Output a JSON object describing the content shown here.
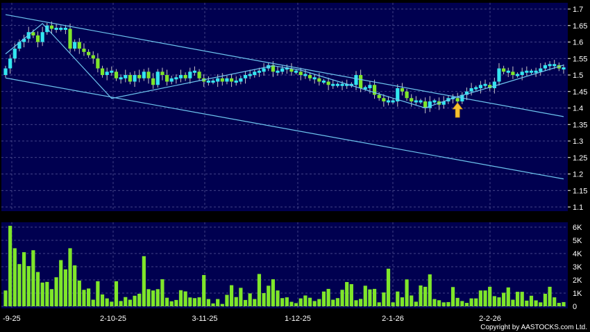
{
  "chart_data": [
    {
      "type": "candlestick",
      "panel": "price",
      "ylim": [
        1.1,
        1.7
      ],
      "yticks": [
        "1.7",
        "1.65",
        "1.6",
        "1.55",
        "1.5",
        "1.45",
        "1.4",
        "1.35",
        "1.3",
        "1.25",
        "1.2",
        "1.15",
        "1.1"
      ],
      "grid": true,
      "colors": {
        "background": "#000050",
        "up": "#33e6f0",
        "down": "#7fe62a",
        "trendline": "#6ec6f0",
        "arrow": "#f5c030"
      },
      "closes": [
        1.52,
        1.55,
        1.58,
        1.6,
        1.61,
        1.63,
        1.62,
        1.6,
        1.63,
        1.65,
        1.64,
        1.64,
        1.64,
        1.64,
        1.58,
        1.6,
        1.58,
        1.57,
        1.56,
        1.55,
        1.52,
        1.5,
        1.51,
        1.51,
        1.49,
        1.49,
        1.5,
        1.48,
        1.5,
        1.49,
        1.51,
        1.49,
        1.47,
        1.51,
        1.5,
        1.48,
        1.49,
        1.49,
        1.5,
        1.49,
        1.51,
        1.51,
        1.49,
        1.48,
        1.48,
        1.48,
        1.49,
        1.48,
        1.49,
        1.48,
        1.48,
        1.49,
        1.5,
        1.5,
        1.51,
        1.51,
        1.52,
        1.53,
        1.51,
        1.51,
        1.52,
        1.52,
        1.51,
        1.51,
        1.5,
        1.5,
        1.49,
        1.49,
        1.48,
        1.48,
        1.47,
        1.47,
        1.47,
        1.47,
        1.47,
        1.47,
        1.5,
        1.46,
        1.46,
        1.47,
        1.44,
        1.43,
        1.42,
        1.42,
        1.42,
        1.46,
        1.45,
        1.43,
        1.42,
        1.42,
        1.42,
        1.4,
        1.42,
        1.42,
        1.41,
        1.42,
        1.43,
        1.43,
        1.42,
        1.44,
        1.45,
        1.46,
        1.46,
        1.47,
        1.47,
        1.46,
        1.48,
        1.52,
        1.51,
        1.51,
        1.5,
        1.5,
        1.51,
        1.51,
        1.51,
        1.51,
        1.52,
        1.53,
        1.53,
        1.53,
        1.52,
        1.52
      ],
      "trendlines": [
        {
          "from": [
            0,
            1.683
          ],
          "to": [
            121,
            1.374
          ]
        },
        {
          "from": [
            0,
            1.491
          ],
          "to": [
            121,
            1.185
          ]
        },
        {
          "points": [
            [
              0,
              1.564
            ],
            [
              8,
              1.656
            ],
            [
              23,
              1.429
            ],
            [
              58,
              1.528
            ],
            [
              64,
              1.515
            ],
            [
              91,
              1.4
            ],
            [
              97,
              1.43
            ],
            [
              108,
              1.475
            ],
            [
              121,
              1.53
            ]
          ]
        }
      ],
      "annotation": {
        "type": "up-arrow",
        "bar": 98
      }
    },
    {
      "type": "bar",
      "panel": "volume",
      "ylim": [
        0,
        6000
      ],
      "yticks": [
        "6K",
        "5K",
        "4K",
        "3K",
        "2K",
        "1K",
        "0"
      ],
      "values": [
        1200,
        6100,
        4400,
        3200,
        4100,
        3050,
        4250,
        2600,
        1800,
        1850,
        1300,
        2200,
        3500,
        2800,
        4400,
        3100,
        1950,
        1250,
        1350,
        500,
        1900,
        900,
        600,
        350,
        1900,
        400,
        700,
        500,
        800,
        950,
        3800,
        1300,
        1200,
        1300,
        2050,
        650,
        380,
        480,
        1220,
        1130,
        670,
        620,
        680,
        2370,
        550,
        220,
        550,
        180,
        870,
        1600,
        700,
        1400,
        480,
        980,
        550,
        2450,
        1000,
        1560,
        2050,
        1200,
        620,
        680,
        340,
        240,
        600,
        820,
        650,
        400,
        550,
        1120,
        1320,
        500,
        620,
        1250,
        1840,
        1680,
        460,
        560,
        1560,
        1280,
        1320,
        300,
        1050,
        2850,
        300,
        1120,
        680,
        2040,
        820,
        350,
        1580,
        1480,
        2420,
        550,
        460,
        300,
        320,
        1460,
        640,
        400,
        260,
        600,
        600,
        1200,
        1200,
        1480,
        770,
        680,
        1030,
        1430,
        500,
        1100,
        1100,
        430,
        800,
        450,
        300,
        950,
        1480,
        680,
        260,
        320
      ]
    }
  ],
  "xaxis": {
    "ticks": [
      "-9-25",
      "2-10-25",
      "3-11-25",
      "1-12-25",
      "2-1-26",
      "2-2-26"
    ]
  },
  "copyright": "Copyright by AASTOCKS.com Ltd."
}
